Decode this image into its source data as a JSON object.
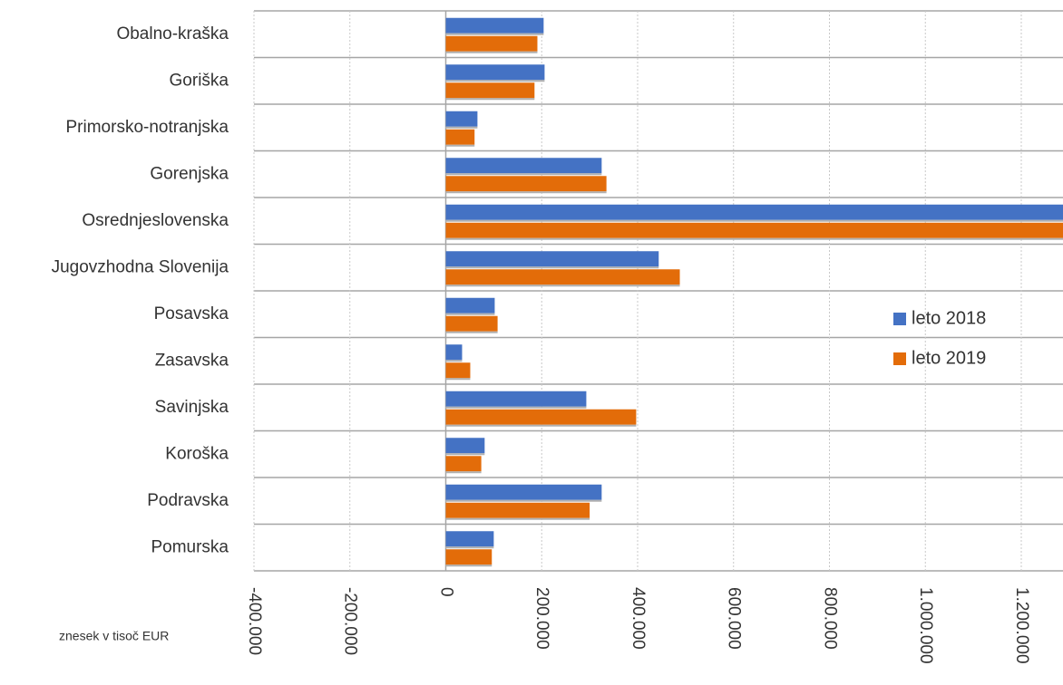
{
  "chart_data": {
    "type": "barh",
    "categories": [
      "Obalno-kraška",
      "Goriška",
      "Primorsko-notranjska",
      "Gorenjska",
      "Osrednjeslovenska",
      "Jugovzhodna Slovenija",
      "Posavska",
      "Zasavska",
      "Savinjska",
      "Koroška",
      "Podravska",
      "Pomurska"
    ],
    "series": [
      {
        "name": "leto 2018",
        "color": "#4472c4",
        "values": [
          204000,
          206000,
          66000,
          325000,
          1300000,
          444000,
          102000,
          34000,
          293000,
          81000,
          325000,
          100000
        ]
      },
      {
        "name": "leto 2019",
        "color": "#e36c09",
        "values": [
          191000,
          185000,
          60000,
          335000,
          1310000,
          488000,
          108000,
          51000,
          397000,
          74000,
          300000,
          96000
        ]
      }
    ],
    "xlim": [
      -400000,
      1287000
    ],
    "xticks": [
      {
        "value": -400000,
        "label": "-400.000"
      },
      {
        "value": -200000,
        "label": "-200.000"
      },
      0,
      {
        "value": 200000,
        "label": "200.000"
      },
      {
        "value": 400000,
        "label": "400.000"
      },
      {
        "value": 600000,
        "label": "600.000"
      },
      {
        "value": 800000,
        "label": "800.000"
      },
      {
        "value": 1000000,
        "label": "1.000.000"
      },
      {
        "value": 1200000,
        "label": "1.200.000"
      }
    ],
    "xlabel": "znesek v tisoč EUR",
    "grid": true,
    "legend": "right"
  }
}
